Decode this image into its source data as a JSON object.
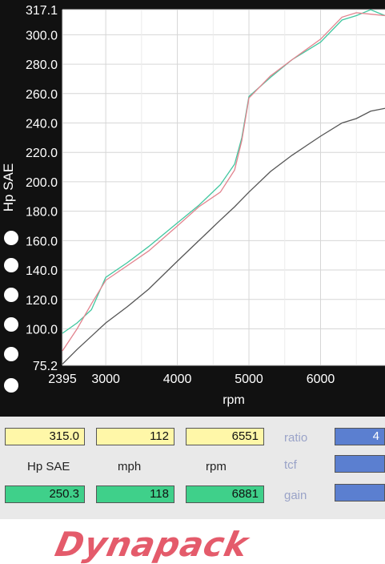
{
  "chart_data": {
    "type": "line",
    "xlabel": "rpm",
    "ylabel": "Hp SAE",
    "xlim": [
      2395,
      6900
    ],
    "ylim": [
      75.2,
      317.1
    ],
    "x_ticks": [
      "2395",
      "3000",
      "4000",
      "5000",
      "6000"
    ],
    "y_ticks": [
      "75.2",
      "100.0",
      "120.0",
      "140.0",
      "160.0",
      "180.0",
      "200.0",
      "220.0",
      "240.0",
      "260.0",
      "280.0",
      "300.0",
      "317.1"
    ],
    "grid": true,
    "series": [
      {
        "color": "#41c7a0",
        "x": [
          2395,
          2600,
          2800,
          3000,
          3300,
          3600,
          4000,
          4300,
          4600,
          4800,
          4900,
          5000,
          5300,
          5600,
          6000,
          6300,
          6500,
          6700,
          6900
        ],
        "y": [
          97,
          104,
          113,
          135,
          145,
          156,
          172,
          184,
          198,
          212,
          230,
          258,
          271,
          283,
          295,
          310,
          313,
          317,
          313
        ]
      },
      {
        "color": "#e2838e",
        "x": [
          2395,
          2600,
          2800,
          3000,
          3300,
          3600,
          4000,
          4300,
          4600,
          4800,
          4900,
          5000,
          5300,
          5600,
          6000,
          6300,
          6500,
          6700,
          6900
        ],
        "y": [
          85,
          100,
          117,
          133,
          143,
          153,
          170,
          183,
          193,
          208,
          228,
          257,
          272,
          283,
          297,
          312,
          315,
          314,
          313
        ]
      },
      {
        "color": "#555555",
        "x": [
          2395,
          2600,
          2800,
          3000,
          3300,
          3600,
          4000,
          4300,
          4600,
          4800,
          5000,
          5300,
          5600,
          6000,
          6300,
          6500,
          6700,
          6900
        ],
        "y": [
          76,
          86,
          95,
          104,
          115,
          127,
          146,
          160,
          174,
          183,
          193,
          207,
          218,
          231,
          240,
          243,
          248,
          250
        ]
      }
    ]
  },
  "readout": {
    "row1": [
      "315.0",
      "112",
      "6551"
    ],
    "labels": [
      "Hp SAE",
      "mph",
      "rpm"
    ],
    "row3": [
      "250.3",
      "118",
      "6881"
    ],
    "side_labels": [
      "ratio",
      "tcf",
      "gain"
    ],
    "side_values": [
      "4",
      "",
      ""
    ]
  },
  "logo": {
    "text": "Dynapack"
  }
}
